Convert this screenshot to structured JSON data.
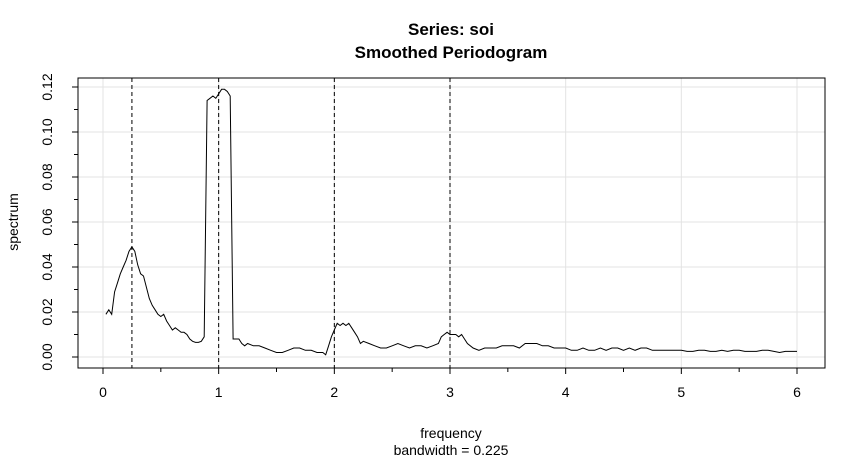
{
  "chart_data": {
    "type": "line",
    "title": "Series: soi",
    "subtitle": "Smoothed Periodogram",
    "xlabel": "frequency",
    "xlabel_note": "bandwidth = 0.225",
    "ylabel": "spectrum",
    "xlim": [
      0,
      6
    ],
    "ylim": [
      0,
      0.12
    ],
    "x_ticks": [
      0,
      1,
      2,
      3,
      4,
      5,
      6
    ],
    "x_tick_labels": [
      "0",
      "1",
      "2",
      "3",
      "4",
      "5",
      "6"
    ],
    "y_ticks": [
      0,
      0.02,
      0.04,
      0.06,
      0.08,
      0.1,
      0.12
    ],
    "y_tick_labels": [
      "0.00",
      "0.02",
      "0.04",
      "0.06",
      "0.08",
      "0.10",
      "0.12"
    ],
    "grid": true,
    "reference_lines_x": [
      0.25,
      1,
      2,
      3
    ],
    "series": [
      {
        "color": "#000000",
        "points": [
          [
            0.025,
            0.019
          ],
          [
            0.05,
            0.021
          ],
          [
            0.075,
            0.019
          ],
          [
            0.1,
            0.029
          ],
          [
            0.125,
            0.033
          ],
          [
            0.15,
            0.037
          ],
          [
            0.175,
            0.04
          ],
          [
            0.2,
            0.043
          ],
          [
            0.225,
            0.047
          ],
          [
            0.25,
            0.049
          ],
          [
            0.275,
            0.047
          ],
          [
            0.3,
            0.041
          ],
          [
            0.325,
            0.037
          ],
          [
            0.35,
            0.036
          ],
          [
            0.375,
            0.031
          ],
          [
            0.4,
            0.026
          ],
          [
            0.425,
            0.023
          ],
          [
            0.45,
            0.021
          ],
          [
            0.475,
            0.019
          ],
          [
            0.5,
            0.018
          ],
          [
            0.525,
            0.019
          ],
          [
            0.55,
            0.016
          ],
          [
            0.575,
            0.014
          ],
          [
            0.6,
            0.012
          ],
          [
            0.625,
            0.013
          ],
          [
            0.65,
            0.012
          ],
          [
            0.675,
            0.011
          ],
          [
            0.7,
            0.011
          ],
          [
            0.725,
            0.01
          ],
          [
            0.75,
            0.008
          ],
          [
            0.775,
            0.007
          ],
          [
            0.8,
            0.0065
          ],
          [
            0.825,
            0.0065
          ],
          [
            0.85,
            0.007
          ],
          [
            0.875,
            0.009
          ],
          [
            0.9,
            0.114
          ],
          [
            0.925,
            0.115
          ],
          [
            0.95,
            0.116
          ],
          [
            0.975,
            0.115
          ],
          [
            1.0,
            0.117
          ],
          [
            1.025,
            0.119
          ],
          [
            1.05,
            0.119
          ],
          [
            1.075,
            0.118
          ],
          [
            1.1,
            0.116
          ],
          [
            1.125,
            0.008
          ],
          [
            1.15,
            0.008
          ],
          [
            1.175,
            0.008
          ],
          [
            1.2,
            0.006
          ],
          [
            1.225,
            0.005
          ],
          [
            1.25,
            0.006
          ],
          [
            1.3,
            0.005
          ],
          [
            1.35,
            0.005
          ],
          [
            1.4,
            0.004
          ],
          [
            1.45,
            0.003
          ],
          [
            1.5,
            0.002
          ],
          [
            1.55,
            0.002
          ],
          [
            1.6,
            0.003
          ],
          [
            1.65,
            0.004
          ],
          [
            1.7,
            0.004
          ],
          [
            1.75,
            0.003
          ],
          [
            1.8,
            0.003
          ],
          [
            1.85,
            0.002
          ],
          [
            1.9,
            0.002
          ],
          [
            1.925,
            0.001
          ],
          [
            1.95,
            0.005
          ],
          [
            1.975,
            0.009
          ],
          [
            2.0,
            0.012
          ],
          [
            2.025,
            0.015
          ],
          [
            2.05,
            0.014
          ],
          [
            2.075,
            0.015
          ],
          [
            2.1,
            0.014
          ],
          [
            2.125,
            0.015
          ],
          [
            2.15,
            0.013
          ],
          [
            2.175,
            0.011
          ],
          [
            2.2,
            0.009
          ],
          [
            2.225,
            0.006
          ],
          [
            2.25,
            0.007
          ],
          [
            2.3,
            0.006
          ],
          [
            2.35,
            0.005
          ],
          [
            2.4,
            0.004
          ],
          [
            2.45,
            0.004
          ],
          [
            2.5,
            0.005
          ],
          [
            2.55,
            0.006
          ],
          [
            2.6,
            0.005
          ],
          [
            2.65,
            0.004
          ],
          [
            2.7,
            0.005
          ],
          [
            2.75,
            0.005
          ],
          [
            2.8,
            0.004
          ],
          [
            2.85,
            0.005
          ],
          [
            2.9,
            0.006
          ],
          [
            2.925,
            0.009
          ],
          [
            2.95,
            0.01
          ],
          [
            2.975,
            0.011
          ],
          [
            3.0,
            0.01
          ],
          [
            3.025,
            0.01
          ],
          [
            3.05,
            0.01
          ],
          [
            3.075,
            0.009
          ],
          [
            3.1,
            0.01
          ],
          [
            3.125,
            0.008
          ],
          [
            3.15,
            0.006
          ],
          [
            3.2,
            0.004
          ],
          [
            3.25,
            0.003
          ],
          [
            3.3,
            0.004
          ],
          [
            3.35,
            0.004
          ],
          [
            3.4,
            0.004
          ],
          [
            3.45,
            0.005
          ],
          [
            3.5,
            0.005
          ],
          [
            3.55,
            0.005
          ],
          [
            3.6,
            0.004
          ],
          [
            3.65,
            0.006
          ],
          [
            3.7,
            0.006
          ],
          [
            3.75,
            0.006
          ],
          [
            3.8,
            0.005
          ],
          [
            3.85,
            0.005
          ],
          [
            3.9,
            0.004
          ],
          [
            3.95,
            0.004
          ],
          [
            4.0,
            0.004
          ],
          [
            4.05,
            0.003
          ],
          [
            4.1,
            0.003
          ],
          [
            4.15,
            0.004
          ],
          [
            4.2,
            0.003
          ],
          [
            4.25,
            0.003
          ],
          [
            4.3,
            0.004
          ],
          [
            4.35,
            0.003
          ],
          [
            4.4,
            0.004
          ],
          [
            4.45,
            0.004
          ],
          [
            4.5,
            0.003
          ],
          [
            4.55,
            0.004
          ],
          [
            4.6,
            0.003
          ],
          [
            4.65,
            0.004
          ],
          [
            4.7,
            0.004
          ],
          [
            4.75,
            0.003
          ],
          [
            4.8,
            0.003
          ],
          [
            4.85,
            0.003
          ],
          [
            4.9,
            0.003
          ],
          [
            4.95,
            0.003
          ],
          [
            5.0,
            0.003
          ],
          [
            5.05,
            0.0025
          ],
          [
            5.1,
            0.0025
          ],
          [
            5.15,
            0.003
          ],
          [
            5.2,
            0.003
          ],
          [
            5.25,
            0.0025
          ],
          [
            5.3,
            0.0025
          ],
          [
            5.35,
            0.003
          ],
          [
            5.4,
            0.0025
          ],
          [
            5.45,
            0.003
          ],
          [
            5.5,
            0.003
          ],
          [
            5.55,
            0.0025
          ],
          [
            5.6,
            0.0025
          ],
          [
            5.65,
            0.0025
          ],
          [
            5.7,
            0.003
          ],
          [
            5.75,
            0.003
          ],
          [
            5.8,
            0.0025
          ],
          [
            5.85,
            0.002
          ],
          [
            5.9,
            0.0025
          ],
          [
            5.95,
            0.0025
          ],
          [
            6.0,
            0.0025
          ]
        ]
      }
    ]
  }
}
